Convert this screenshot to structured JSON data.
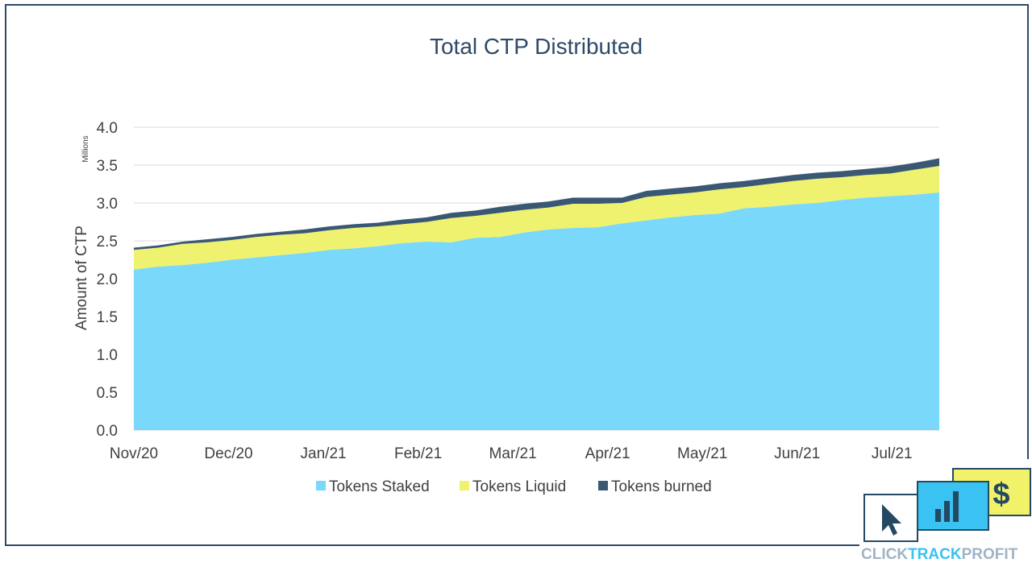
{
  "colors": {
    "staked": "#7ad8fb",
    "liquid": "#eef26f",
    "burned": "#3a5874",
    "title": "#2e4a68",
    "axis_text": "#404040",
    "grid": "#d9d9d9",
    "frame": "#2e4a68",
    "logo_blue": "#39c2f2",
    "logo_yellow": "#f2f26a",
    "logo_dark": "#244a63"
  },
  "logo": {
    "word_click": "CLICK",
    "word_track": "TRACK",
    "word_profit": "PROFIT",
    "icons": [
      "cursor-icon",
      "bar-chart-icon",
      "dollar-icon"
    ]
  },
  "chart_data": {
    "type": "area",
    "stacked": true,
    "title": "Total CTP Distributed",
    "ylabel": "Amount of CTP",
    "yunit_label": "Millions",
    "ylim": [
      0,
      4.0
    ],
    "yticks": [
      "0.0",
      "0.5",
      "1.0",
      "1.5",
      "2.0",
      "2.5",
      "3.0",
      "3.5",
      "4.0"
    ],
    "grid": true,
    "legend_position": "bottom",
    "xticks": [
      "Nov/20",
      "Dec/20",
      "Jan/21",
      "Feb/21",
      "Mar/21",
      "Apr/21",
      "May/21",
      "Jun/21",
      "Jul/21"
    ],
    "x": [
      "Nov/20",
      "",
      "",
      "",
      "Dec/20",
      "",
      "",
      "",
      "Jan/21",
      "",
      "",
      "",
      "Feb/21",
      "",
      "",
      "",
      "Mar/21",
      "",
      "",
      "",
      "Apr/21",
      "",
      "",
      "",
      "May/21",
      "",
      "",
      "",
      "Jun/21",
      "",
      "",
      "",
      "Jul/21",
      ""
    ],
    "series": [
      {
        "name": "Tokens Staked",
        "values": [
          2.12,
          2.16,
          2.18,
          2.21,
          2.25,
          2.28,
          2.31,
          2.34,
          2.38,
          2.4,
          2.43,
          2.47,
          2.49,
          2.48,
          2.54,
          2.55,
          2.61,
          2.65,
          2.67,
          2.68,
          2.73,
          2.77,
          2.81,
          2.84,
          2.86,
          2.93,
          2.95,
          2.98,
          3.0,
          3.04,
          3.07,
          3.09,
          3.11,
          3.14
        ]
      },
      {
        "name": "Tokens Liquid",
        "values": [
          0.26,
          0.25,
          0.28,
          0.27,
          0.26,
          0.27,
          0.27,
          0.26,
          0.26,
          0.27,
          0.26,
          0.25,
          0.26,
          0.32,
          0.29,
          0.32,
          0.3,
          0.29,
          0.32,
          0.31,
          0.27,
          0.31,
          0.3,
          0.3,
          0.32,
          0.28,
          0.3,
          0.31,
          0.32,
          0.3,
          0.3,
          0.3,
          0.33,
          0.35
        ]
      },
      {
        "name": "Tokens burned",
        "values": [
          0.03,
          0.03,
          0.03,
          0.04,
          0.04,
          0.04,
          0.04,
          0.05,
          0.05,
          0.05,
          0.05,
          0.06,
          0.06,
          0.07,
          0.07,
          0.08,
          0.08,
          0.08,
          0.08,
          0.08,
          0.07,
          0.08,
          0.08,
          0.08,
          0.08,
          0.08,
          0.08,
          0.08,
          0.08,
          0.08,
          0.08,
          0.09,
          0.09,
          0.1
        ]
      }
    ]
  }
}
